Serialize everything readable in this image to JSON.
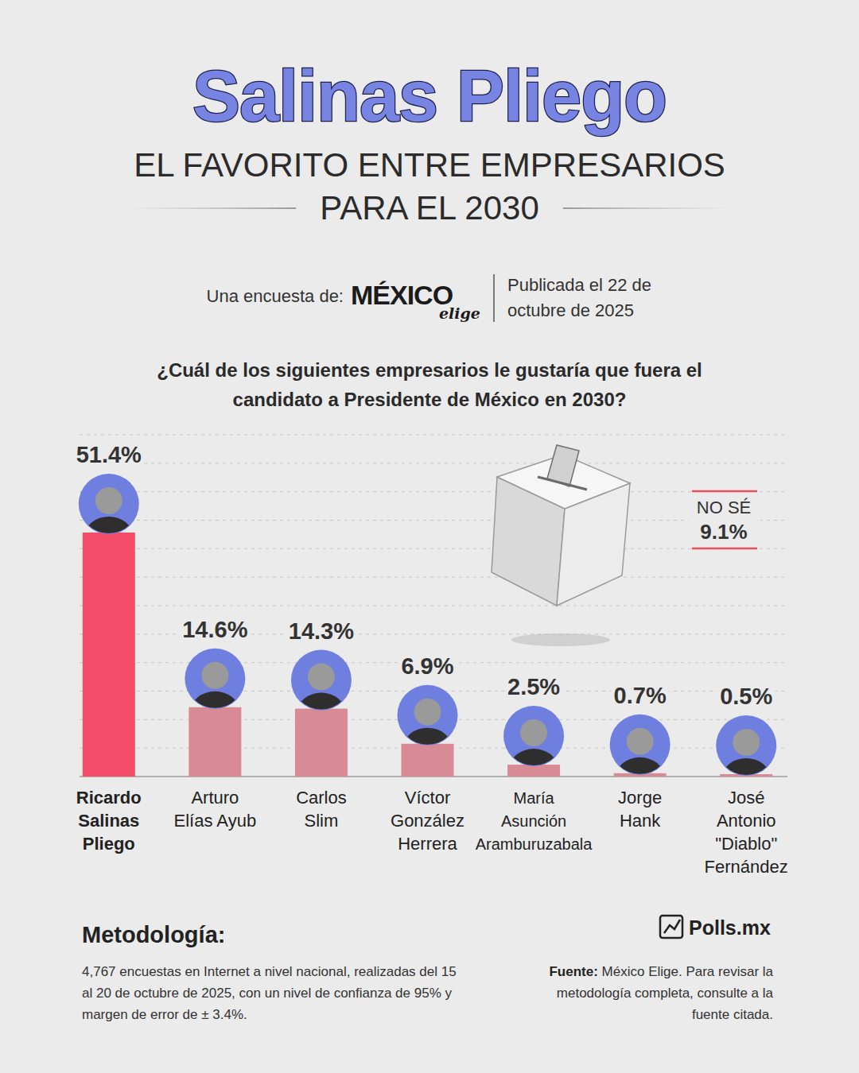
{
  "header": {
    "survey_prefix": "Una encuesta de:",
    "logo": "MÉXICO",
    "logo_tagline": "elige",
    "published": "Publicada el 22 de octubre de 2025"
  },
  "chart_data": {
    "type": "bar",
    "title": "Salinas Pliego",
    "subtitle": "EL FAVORITO ENTRE EMPRESARIOS PARA EL 2030",
    "question": "¿Cuál de los siguientes empresarios le gustaría que fuera el candidato a Presidente de México en 2030?",
    "categories": [
      "Ricardo Salinas Pliego",
      "Arturo Elías Ayub",
      "Carlos Slim",
      "Víctor González Herrera",
      "María Asunción Aramburuzabala",
      "Jorge Hank",
      "José Antonio \"Diablo\" Fernández"
    ],
    "values": [
      51.4,
      14.6,
      14.3,
      6.9,
      2.5,
      0.7,
      0.5
    ],
    "value_labels": [
      "51.4%",
      "14.6%",
      "14.3%",
      "6.9%",
      "2.5%",
      "0.7%",
      "0.5%"
    ],
    "colors": [
      "#f24c68",
      "#d98b95",
      "#d98b95",
      "#d98b95",
      "#d98b95",
      "#d98b95",
      "#d98b95"
    ],
    "ylim": [
      0,
      72
    ],
    "yticks": [
      0,
      6,
      12,
      18,
      24,
      30,
      36,
      42,
      48,
      54,
      60,
      66,
      72
    ],
    "grid": true,
    "data_labels": true,
    "tick_labels": "x",
    "annotations": [
      {
        "label": "NO SÉ",
        "value": 9.1,
        "value_label": "9.1%"
      }
    ]
  },
  "footer": {
    "methodology_title": "Metodología:",
    "methodology": "4,767 encuestas en Internet a nivel nacional, realizadas del 15 al 20 de octubre de 2025, con un nivel de confianza de 95% y margen de error de ± 3.4%.",
    "brand": "Polls.mx",
    "source_label": "Fuente:",
    "source": "México Elige. Para revisar la metodología completa, consulte a la fuente citada."
  }
}
